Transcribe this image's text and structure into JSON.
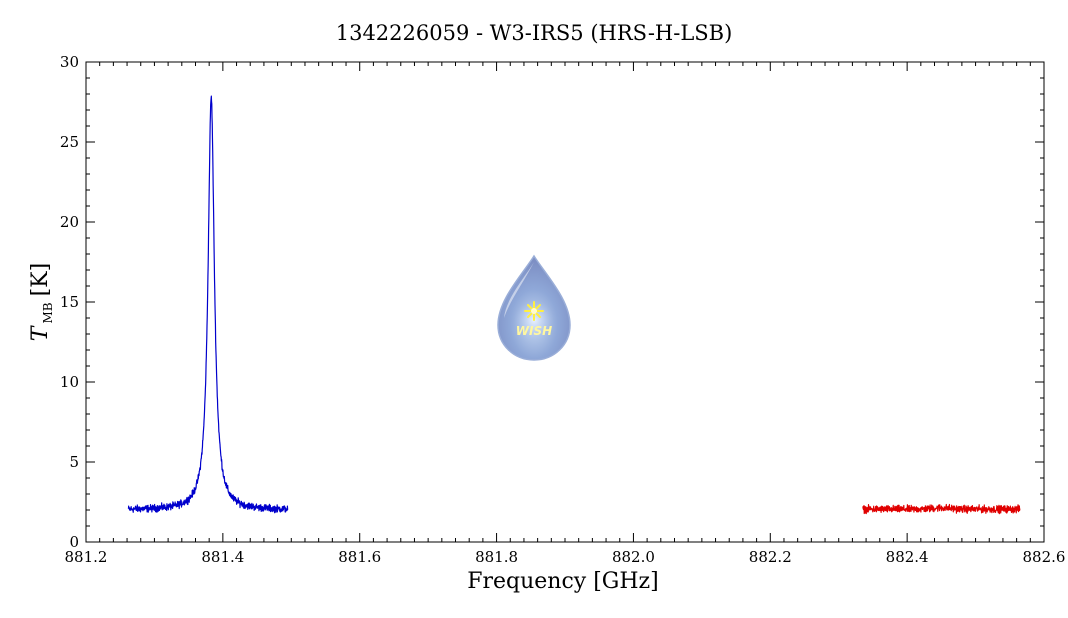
{
  "chart_data": {
    "type": "line",
    "title": "1342226059 - W3-IRS5 (HRS-H-LSB)",
    "xlabel": "Frequency [GHz]",
    "ylabel_main": "T",
    "ylabel_sub": "MB",
    "ylabel_unit": "[K]",
    "xlim": [
      881.2,
      882.6
    ],
    "ylim": [
      0,
      30
    ],
    "x_ticks": [
      "881.2",
      "881.4",
      "881.6",
      "881.8",
      "882.0",
      "882.2",
      "882.4",
      "882.6"
    ],
    "x_tick_values": [
      881.2,
      881.4,
      881.6,
      881.8,
      882.0,
      882.2,
      882.4,
      882.6
    ],
    "y_ticks": [
      "0",
      "5",
      "10",
      "15",
      "20",
      "25",
      "30"
    ],
    "y_tick_values": [
      0,
      5,
      10,
      15,
      20,
      25,
      30
    ],
    "grid": false,
    "series": [
      {
        "color": "#0000cc",
        "x_range": [
          881.262,
          881.495
        ],
        "baseline": 2.0,
        "peak": {
          "center": 881.383,
          "amplitude": 25.8,
          "width": 0.0055
        }
      },
      {
        "color": "#e00000",
        "x_range": [
          882.335,
          882.565
        ],
        "baseline": 2.05
      }
    ],
    "logo": {
      "icon": "wish-water-drop-icon",
      "text": "WISH"
    }
  }
}
